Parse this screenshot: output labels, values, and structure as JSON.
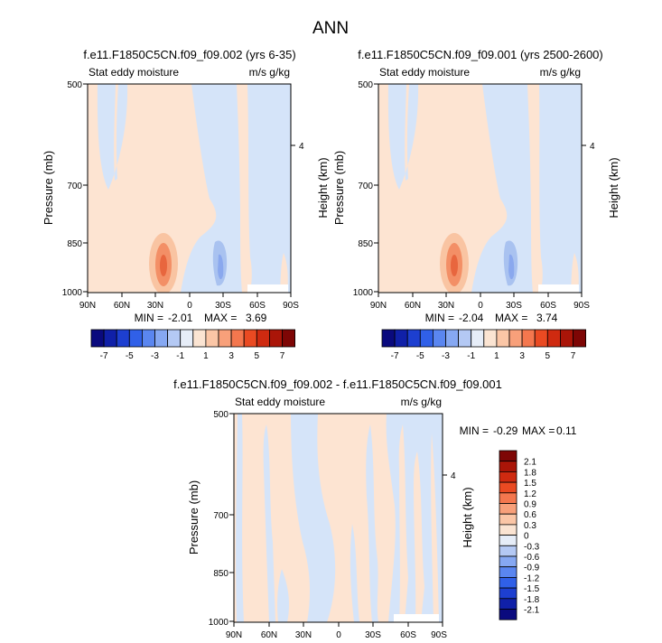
{
  "figure": {
    "title": "ANN"
  },
  "chart_data": [
    {
      "type": "heatmap",
      "title": "f.e11.F1850C5CN.f09_f09.002 (yrs 6-35)",
      "field_label": "Stat eddy moisture",
      "units": "m/s g/kg",
      "ylabel": "Pressure (mb)",
      "ylabel_right": "Height (km)",
      "x_ticks": [
        "90N",
        "60N",
        "30N",
        "0",
        "30S",
        "60S",
        "90S"
      ],
      "y_ticks": [
        "500",
        "700",
        "850",
        "1000"
      ],
      "y_right_ticks": [
        "4"
      ],
      "min_label": "MIN =",
      "min": "-2.01",
      "max_label": "MAX =",
      "max": "3.69"
    },
    {
      "type": "heatmap",
      "title": "f.e11.F1850C5CN.f09_f09.001 (yrs 2500-2600)",
      "field_label": "Stat eddy moisture",
      "units": "m/s g/kg",
      "ylabel": "Pressure (mb)",
      "ylabel_right": "Height (km)",
      "x_ticks": [
        "90N",
        "60N",
        "30N",
        "0",
        "30S",
        "60S",
        "90S"
      ],
      "y_ticks": [
        "500",
        "700",
        "850",
        "1000"
      ],
      "y_right_ticks": [
        "4"
      ],
      "min_label": "MIN =",
      "min": "-2.04",
      "max_label": "MAX =",
      "max": "3.74"
    },
    {
      "type": "heatmap",
      "title": "f.e11.F1850C5CN.f09_f09.002 - f.e11.F1850C5CN.f09_f09.001",
      "field_label": "Stat eddy moisture",
      "units": "m/s g/kg",
      "ylabel": "Pressure (mb)",
      "ylabel_right": "Height (km)",
      "x_ticks": [
        "90N",
        "60N",
        "30N",
        "0",
        "30S",
        "60S",
        "90S"
      ],
      "y_ticks": [
        "500",
        "700",
        "850",
        "1000"
      ],
      "y_right_ticks": [
        "4"
      ],
      "min_label": "MIN =",
      "min": "-0.29",
      "max_label": "MAX =",
      "max": "0.11"
    }
  ],
  "colorbar_top": {
    "labels": [
      "-7",
      "-5",
      "-3",
      "-1",
      "1",
      "3",
      "5",
      "7"
    ],
    "colors": [
      "#0a0a7e",
      "#1020a8",
      "#1d3fd0",
      "#3060e8",
      "#5a86f0",
      "#86a8f2",
      "#b4c9f4",
      "#e6edf8",
      "#fbe4d2",
      "#fbc6a6",
      "#f8a07a",
      "#f4774e",
      "#ea4a22",
      "#cf2a10",
      "#aa1508",
      "#7e0605"
    ]
  },
  "colorbar_diff": {
    "labels": [
      "2.1",
      "1.8",
      "1.5",
      "1.2",
      "0.9",
      "0.6",
      "0.3",
      "0",
      "-0.3",
      "-0.6",
      "-0.9",
      "-1.2",
      "-1.5",
      "-1.8",
      "-2.1"
    ],
    "colors": [
      "#7e0605",
      "#aa1508",
      "#cf2a10",
      "#ea4a22",
      "#f4774e",
      "#f8a07a",
      "#fbc6a6",
      "#fbe4d2",
      "#e6edf8",
      "#b4c9f4",
      "#86a8f2",
      "#5a86f0",
      "#3060e8",
      "#1d3fd0",
      "#1020a8",
      "#0a0a7e"
    ]
  },
  "colors": {
    "light_warm": "#fde4d2",
    "light_cool": "#d5e4f9",
    "medium_warm": "#f9c4a2",
    "strong_warm": "#f38f66",
    "peak_warm": "#e8663e",
    "medium_cool": "#a9c2f0",
    "strong_cool": "#8aa8ee"
  }
}
